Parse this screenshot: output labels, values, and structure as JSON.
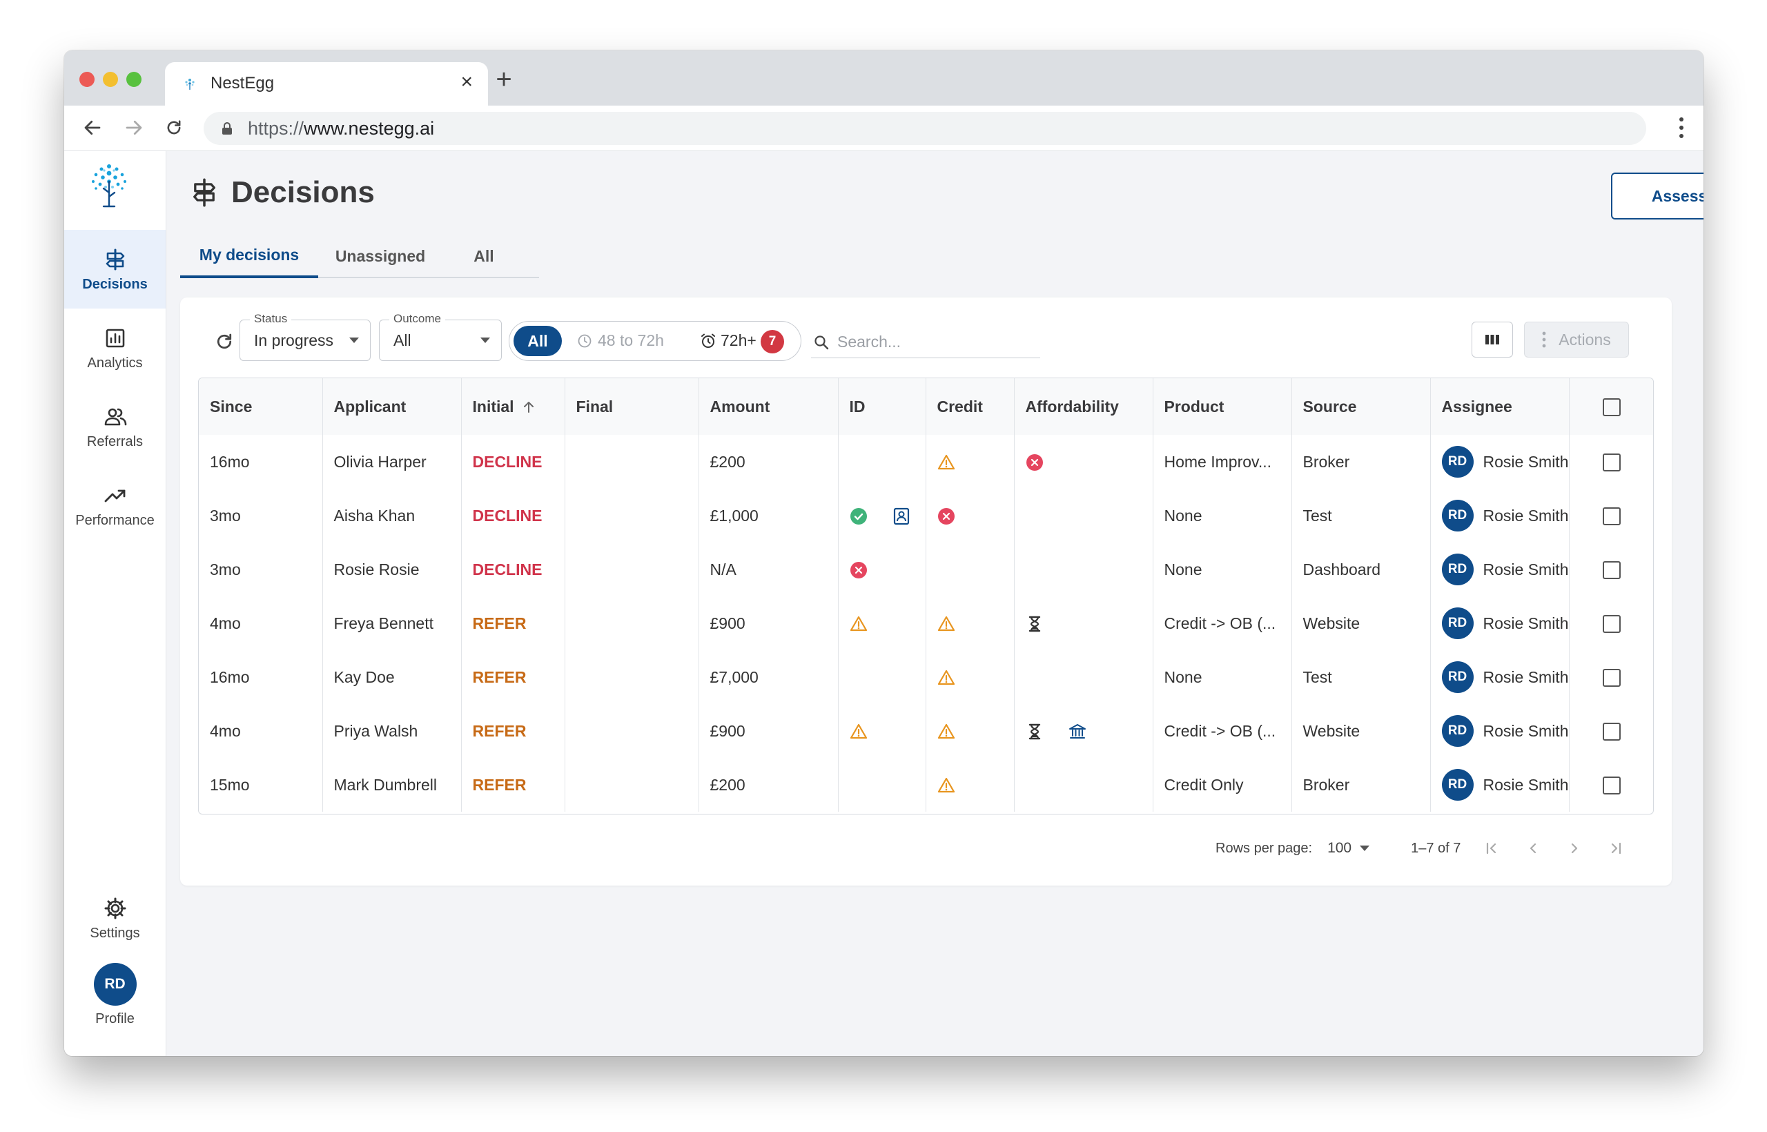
{
  "browser": {
    "tab_title": "NestEgg",
    "url_scheme": "https://",
    "url_host": "www.nestegg.ai"
  },
  "sidebar": {
    "items": [
      {
        "label": "Decisions",
        "icon": "signpost-icon",
        "active": true
      },
      {
        "label": "Analytics",
        "icon": "bar-chart-icon",
        "active": false
      },
      {
        "label": "Referrals",
        "icon": "people-icon",
        "active": false
      },
      {
        "label": "Performance",
        "icon": "trending-up-icon",
        "active": false
      }
    ],
    "settings_label": "Settings",
    "profile_label": "Profile",
    "profile_initials": "RD"
  },
  "header": {
    "title": "Decisions",
    "assess_label": "Assess"
  },
  "tabs": [
    "My decisions",
    "Unassigned",
    "All"
  ],
  "filters": {
    "status_legend": "Status",
    "status_value": "In progress",
    "outcome_legend": "Outcome",
    "outcome_value": "All",
    "time_all": "All",
    "time_48": "48 to 72h",
    "time_72": "72h+",
    "time_72_count": "7",
    "search_placeholder": "Search...",
    "actions_label": "Actions"
  },
  "table": {
    "columns": [
      "Since",
      "Applicant",
      "Initial",
      "Final",
      "Amount",
      "ID",
      "Credit",
      "Affordability",
      "Product",
      "Source",
      "Assignee"
    ],
    "rows": [
      {
        "since": "16mo",
        "applicant": "Olivia Harper",
        "initial": "DECLINE",
        "final": "",
        "amount": "£200",
        "id_icons": [],
        "credit_icons": [
          "warning-icon"
        ],
        "afford_icons": [
          "error-icon"
        ],
        "product": "Home Improv...",
        "source": "Broker",
        "assignee_initials": "RD",
        "assignee": "Rosie Smith"
      },
      {
        "since": "3mo",
        "applicant": "Aisha Khan",
        "initial": "DECLINE",
        "final": "",
        "amount": "£1,000",
        "id_icons": [
          "check-icon",
          "id-card-icon"
        ],
        "credit_icons": [
          "error-icon"
        ],
        "afford_icons": [],
        "product": "None",
        "source": "Test",
        "assignee_initials": "RD",
        "assignee": "Rosie Smith"
      },
      {
        "since": "3mo",
        "applicant": "Rosie Rosie",
        "initial": "DECLINE",
        "final": "",
        "amount": "N/A",
        "id_icons": [
          "error-icon"
        ],
        "credit_icons": [],
        "afford_icons": [],
        "product": "None",
        "source": "Dashboard",
        "assignee_initials": "RD",
        "assignee": "Rosie Smith"
      },
      {
        "since": "4mo",
        "applicant": "Freya Bennett",
        "initial": "REFER",
        "final": "",
        "amount": "£900",
        "id_icons": [
          "warning-icon"
        ],
        "credit_icons": [
          "warning-icon"
        ],
        "afford_icons": [
          "hourglass-icon"
        ],
        "product": "Credit -> OB (...",
        "source": "Website",
        "assignee_initials": "RD",
        "assignee": "Rosie Smith"
      },
      {
        "since": "16mo",
        "applicant": "Kay Doe",
        "initial": "REFER",
        "final": "",
        "amount": "£7,000",
        "id_icons": [],
        "credit_icons": [
          "warning-icon"
        ],
        "afford_icons": [],
        "product": "None",
        "source": "Test",
        "assignee_initials": "RD",
        "assignee": "Rosie Smith"
      },
      {
        "since": "4mo",
        "applicant": "Priya Walsh",
        "initial": "REFER",
        "final": "",
        "amount": "£900",
        "id_icons": [
          "warning-icon"
        ],
        "credit_icons": [
          "warning-icon"
        ],
        "afford_icons": [
          "hourglass-icon",
          "bank-icon"
        ],
        "product": "Credit -> OB (...",
        "source": "Website",
        "assignee_initials": "RD",
        "assignee": "Rosie Smith"
      },
      {
        "since": "15mo",
        "applicant": "Mark Dumbrell",
        "initial": "REFER",
        "final": "",
        "amount": "£200",
        "id_icons": [],
        "credit_icons": [
          "warning-icon"
        ],
        "afford_icons": [],
        "product": "Credit Only",
        "source": "Broker",
        "assignee_initials": "RD",
        "assignee": "Rosie Smith"
      }
    ]
  },
  "pagination": {
    "rows_per_page_label": "Rows per page:",
    "rows_per_page": "100",
    "range": "1–7 of 7"
  },
  "colors": {
    "brand": "#0f4c8a",
    "decline": "#d0334a",
    "refer": "#c76a16",
    "warning": "#e8951f",
    "error": "#e5455f",
    "success": "#3fb37a"
  }
}
